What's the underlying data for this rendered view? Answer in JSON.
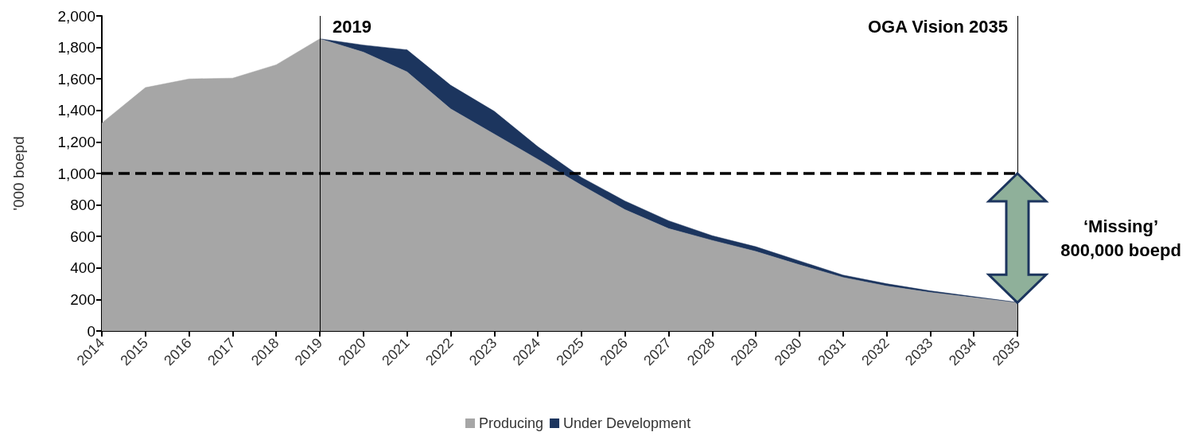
{
  "chart_data": {
    "type": "area",
    "stacked": true,
    "ylabel": "'000 boepd",
    "categories": [
      "2014",
      "2015",
      "2016",
      "2017",
      "2018",
      "2019",
      "2020",
      "2021",
      "2022",
      "2023",
      "2024",
      "2025",
      "2026",
      "2027",
      "2028",
      "2029",
      "2030",
      "2031",
      "2032",
      "2033",
      "2034",
      "2035"
    ],
    "series": [
      {
        "name": "Producing",
        "color": "#a6a6a6",
        "values": [
          1320,
          1545,
          1600,
          1605,
          1690,
          1855,
          1770,
          1645,
          1410,
          1250,
          1090,
          925,
          770,
          650,
          575,
          505,
          420,
          340,
          285,
          245,
          212,
          180
        ]
      },
      {
        "name": "Under Development",
        "color": "#1c355e",
        "values": [
          null,
          null,
          null,
          null,
          null,
          0,
          45,
          140,
          150,
          145,
          80,
          50,
          55,
          50,
          30,
          30,
          25,
          15,
          15,
          10,
          6,
          2
        ]
      }
    ],
    "ylim": [
      0,
      2000
    ],
    "yticks": [
      0,
      200,
      400,
      600,
      800,
      {
        "value": 1000,
        "label": "1,000"
      },
      {
        "value": 1200,
        "label": "1,200"
      },
      {
        "value": 1400,
        "label": "1,400"
      },
      {
        "value": 1600,
        "label": "1,600"
      },
      {
        "value": 1800,
        "label": "1,800"
      },
      {
        "value": 2000,
        "label": "2,000"
      }
    ],
    "ref_lines": [
      {
        "axis": "y",
        "value": 1000,
        "line_style": "dashed",
        "color": "#000000"
      },
      {
        "axis": "x",
        "value": "2019",
        "label": "2019",
        "color": "#000000"
      },
      {
        "axis": "x",
        "value": "2035",
        "label": "OGA Vision 2035",
        "color": "#000000"
      }
    ],
    "annotations": [
      "‘Missing’\n800,000 boepd"
    ],
    "legend": "bottom",
    "grid": false
  }
}
